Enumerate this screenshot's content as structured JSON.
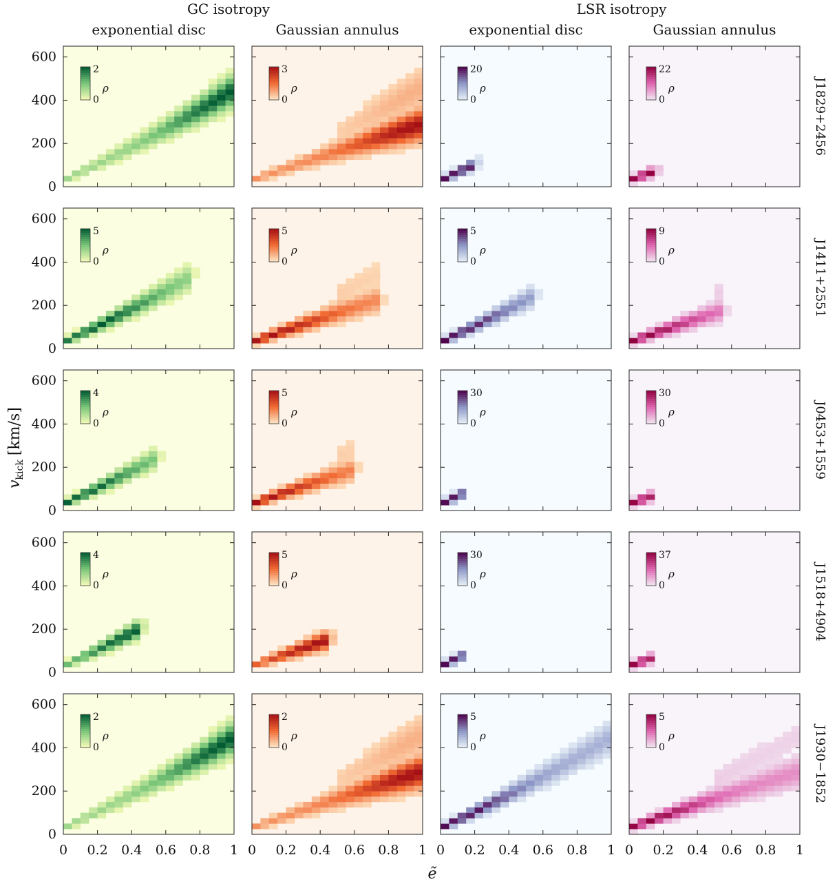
{
  "figure": {
    "group_titles": [
      "GC isotropy",
      "LSR isotropy"
    ],
    "column_titles": [
      "exponential disc",
      "Gaussian annulus",
      "exponential disc",
      "Gaussian annulus"
    ],
    "row_labels": [
      "J1829+2456",
      "J1411+2551",
      "J0453+1559",
      "J1518+4904",
      "J1930−1852"
    ],
    "xlabel": "ẽ",
    "ylabel_main": "v",
    "ylabel_sub": "kick",
    "ylabel_unit": "[km/s]",
    "colorbar_label": "ρ",
    "colorbar_min_label": "0",
    "x_tick_labels": [
      "0",
      "0.2",
      "0.4",
      "0.6",
      "0.8",
      "1"
    ],
    "y_tick_labels": [
      "0",
      "200",
      "400",
      "600"
    ]
  },
  "columns": [
    {
      "name": "GC isotropy exponential disc",
      "cmap": "greens",
      "bg": "#fbfee0",
      "low": "#f7fcb9",
      "mid": "#78c679",
      "high": "#005a32",
      "curve": "upper"
    },
    {
      "name": "GC isotropy Gaussian annulus",
      "cmap": "reds",
      "bg": "#fef3e8",
      "low": "#fee8c8",
      "mid": "#f16a32",
      "high": "#a50f15",
      "curve": "lower"
    },
    {
      "name": "LSR isotropy exponential disc",
      "cmap": "blues-purple",
      "bg": "#f5fbfe",
      "low": "#e8f1f8",
      "mid": "#8c96c6",
      "high": "#4d004b",
      "curve": "upper"
    },
    {
      "name": "LSR isotropy Gaussian annulus",
      "cmap": "pinks",
      "bg": "#f8f4fa",
      "low": "#f1e7f2",
      "mid": "#df65b0",
      "high": "#91003f",
      "curve": "lower"
    }
  ],
  "chart_data": {
    "type": "heatmap",
    "description_axes": {
      "x_range": [
        0,
        1
      ],
      "y_range": [
        0,
        650
      ],
      "x_ticks": [
        0,
        0.2,
        0.4,
        0.6,
        0.8,
        1
      ],
      "y_ticks": [
        0,
        200,
        400,
        600
      ]
    },
    "colorbar_max": [
      [
        "2",
        "3",
        "20",
        "22"
      ],
      [
        "5",
        "5",
        "5",
        "9"
      ],
      [
        "4",
        "5",
        "30",
        "30"
      ],
      [
        "4",
        "5",
        "30",
        "37"
      ],
      [
        "2",
        "2",
        "5",
        "5"
      ]
    ],
    "band_extent_e": [
      [
        1.0,
        1.0,
        0.2,
        0.15
      ],
      [
        0.75,
        0.75,
        0.55,
        0.55
      ],
      [
        0.55,
        0.6,
        0.12,
        0.12
      ],
      [
        0.45,
        0.45,
        0.12,
        0.12
      ],
      [
        1.0,
        1.0,
        1.0,
        1.0
      ]
    ],
    "band_peak_e": [
      [
        0.95,
        0.95,
        0.1,
        0.1
      ],
      [
        0.2,
        0.1,
        0.05,
        0.05
      ],
      [
        0.1,
        0.05,
        0.1,
        0.1
      ],
      [
        0.4,
        0.4,
        0.1,
        0.1
      ],
      [
        0.95,
        0.95,
        0.1,
        0.1
      ]
    ]
  }
}
